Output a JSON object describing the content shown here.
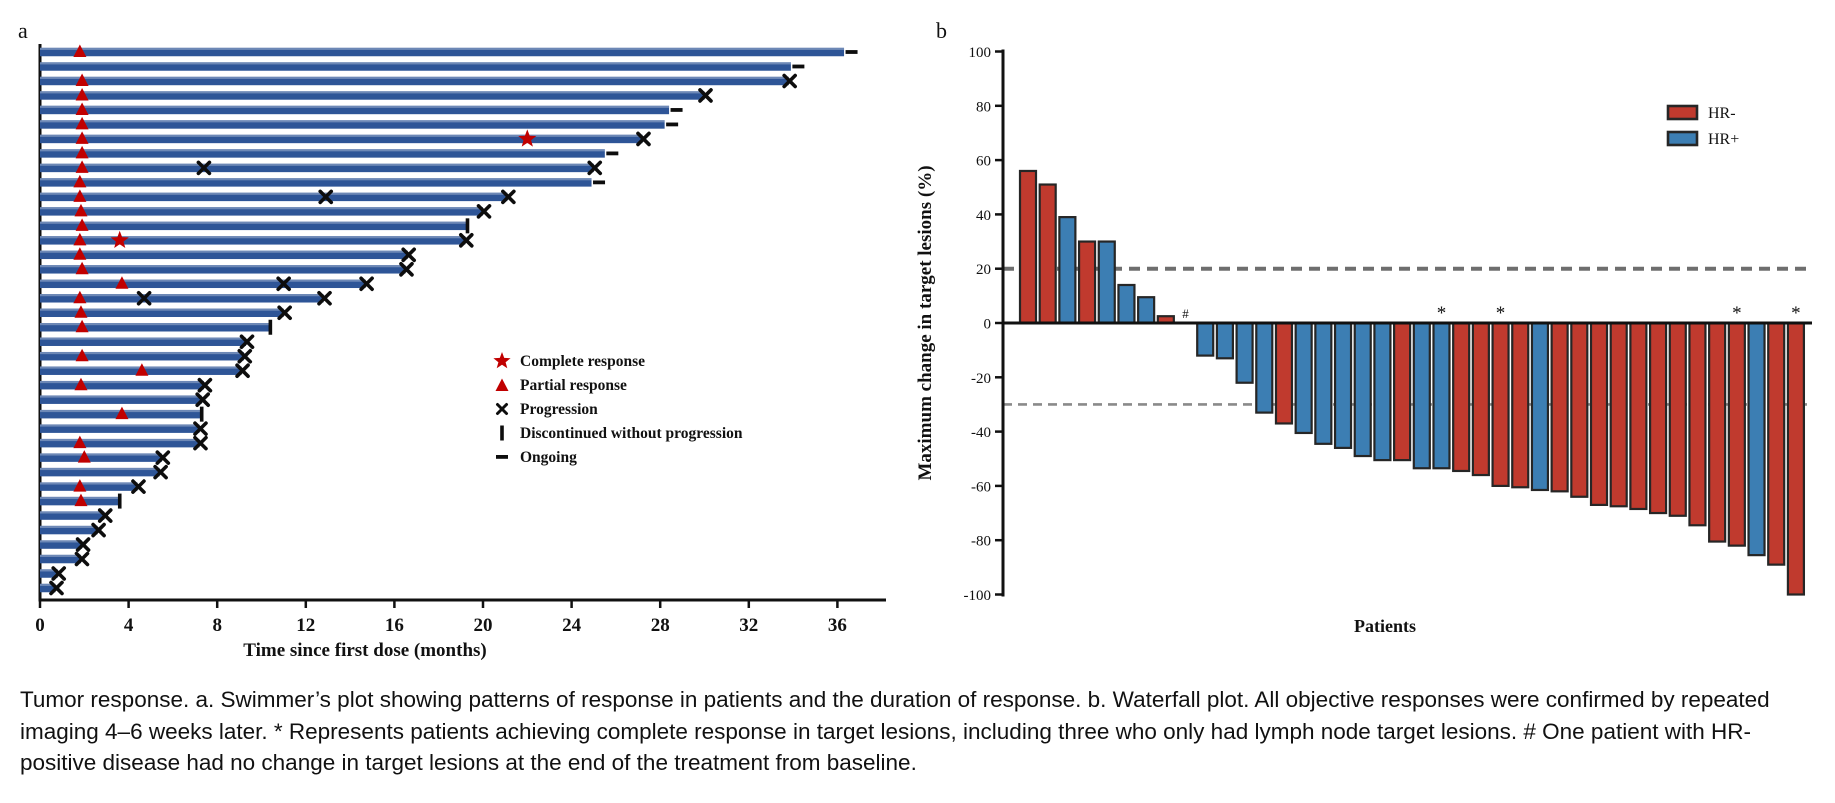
{
  "figure": {
    "panel_a_label": "a",
    "panel_b_label": "b"
  },
  "chart_data": [
    {
      "type": "swimmer",
      "panel": "a",
      "xlabel": "Time since first dose (months)",
      "x_ticks": [
        0,
        4,
        8,
        12,
        16,
        20,
        24,
        28,
        32,
        36
      ],
      "xlim": [
        0,
        38
      ],
      "bar_color": "#2e5597",
      "marker_color": "#c00000",
      "progression_color": "#111111",
      "legend": [
        {
          "marker": "star",
          "label": "Complete response"
        },
        {
          "marker": "triangle",
          "label": "Partial response"
        },
        {
          "marker": "x",
          "label": "Progression"
        },
        {
          "marker": "bar",
          "label": "Discontinued without progression"
        },
        {
          "marker": "dash",
          "label": "Ongoing"
        }
      ],
      "patients": [
        {
          "duration_months": 36.3,
          "end": "ongoing",
          "partial_response_month": 1.8
        },
        {
          "duration_months": 33.9,
          "end": "ongoing"
        },
        {
          "duration_months": 33.8,
          "end": "progression",
          "partial_response_month": 1.9
        },
        {
          "duration_months": 30.0,
          "end": "progression",
          "partial_response_month": 1.9
        },
        {
          "duration_months": 28.4,
          "end": "ongoing",
          "partial_response_month": 1.9
        },
        {
          "duration_months": 28.2,
          "end": "ongoing",
          "partial_response_month": 1.9
        },
        {
          "duration_months": 27.2,
          "end": "progression",
          "partial_response_month": 1.9,
          "complete_response_month": 22.0
        },
        {
          "duration_months": 25.5,
          "end": "ongoing",
          "partial_response_month": 1.9
        },
        {
          "duration_months": 25.0,
          "end": "progression",
          "partial_response_month": 1.9,
          "progression_months": [
            7.4
          ]
        },
        {
          "duration_months": 24.9,
          "end": "ongoing",
          "partial_response_month": 1.8
        },
        {
          "duration_months": 21.1,
          "end": "progression",
          "partial_response_month": 1.8,
          "progression_months": [
            12.9
          ]
        },
        {
          "duration_months": 20.0,
          "end": "progression",
          "partial_response_month": 1.85
        },
        {
          "duration_months": 19.3,
          "end": "discontinued",
          "partial_response_month": 1.9
        },
        {
          "duration_months": 19.2,
          "end": "progression",
          "partial_response_month": 1.8,
          "complete_response_month": 3.6
        },
        {
          "duration_months": 16.6,
          "end": "progression",
          "partial_response_month": 1.8
        },
        {
          "duration_months": 16.5,
          "end": "progression",
          "partial_response_month": 1.9
        },
        {
          "duration_months": 14.7,
          "end": "progression",
          "partial_response_month": 3.7,
          "progression_months": [
            11.0
          ]
        },
        {
          "duration_months": 12.8,
          "end": "progression",
          "partial_response_month": 1.8,
          "progression_months": [
            4.7
          ]
        },
        {
          "duration_months": 11.0,
          "end": "progression",
          "partial_response_month": 1.85
        },
        {
          "duration_months": 10.4,
          "end": "discontinued",
          "partial_response_month": 1.9
        },
        {
          "duration_months": 9.3,
          "end": "progression"
        },
        {
          "duration_months": 9.2,
          "end": "progression",
          "partial_response_month": 1.9
        },
        {
          "duration_months": 9.1,
          "end": "progression",
          "partial_response_month": 4.6
        },
        {
          "duration_months": 7.4,
          "end": "progression",
          "partial_response_month": 1.85
        },
        {
          "duration_months": 7.3,
          "end": "progression"
        },
        {
          "duration_months": 7.3,
          "end": "discontinued",
          "partial_response_month": 3.7
        },
        {
          "duration_months": 7.2,
          "end": "progression"
        },
        {
          "duration_months": 7.2,
          "end": "progression",
          "partial_response_month": 1.8
        },
        {
          "duration_months": 5.5,
          "end": "progression",
          "partial_response_month": 2.0
        },
        {
          "duration_months": 5.4,
          "end": "progression"
        },
        {
          "duration_months": 4.4,
          "end": "progression",
          "partial_response_month": 1.8
        },
        {
          "duration_months": 3.6,
          "end": "discontinued",
          "partial_response_month": 1.85
        },
        {
          "duration_months": 2.9,
          "end": "progression"
        },
        {
          "duration_months": 2.6,
          "end": "progression"
        },
        {
          "duration_months": 1.9,
          "end": "progression"
        },
        {
          "duration_months": 1.85,
          "end": "progression"
        },
        {
          "duration_months": 0.8,
          "end": "progression"
        },
        {
          "duration_months": 0.7,
          "end": "progression"
        }
      ]
    },
    {
      "type": "bar",
      "panel": "b",
      "ylabel": "Maximum change in target lesions (%)",
      "xlabel": "Patients",
      "y_ticks": [
        100,
        80,
        60,
        40,
        20,
        0,
        -20,
        -40,
        -60,
        -80,
        -100
      ],
      "ylim": [
        -100,
        100
      ],
      "reference_lines": [
        20,
        -30
      ],
      "hr_negative_color": "#c03a2e",
      "hr_positive_color": "#3c7eb3",
      "legend": [
        {
          "label": "HR-",
          "color": "#c03a2e"
        },
        {
          "label": "HR+",
          "color": "#3c7eb3"
        }
      ],
      "complete_response_symbol": "*",
      "no_change_symbol": "#",
      "patients": [
        {
          "value": 56,
          "hr": "HR-"
        },
        {
          "value": 51,
          "hr": "HR-"
        },
        {
          "value": 39,
          "hr": "HR+"
        },
        {
          "value": 30,
          "hr": "HR-"
        },
        {
          "value": 30,
          "hr": "HR+"
        },
        {
          "value": 14,
          "hr": "HR+"
        },
        {
          "value": 9.5,
          "hr": "HR+"
        },
        {
          "value": 2.5,
          "hr": "HR-"
        },
        {
          "value": 0,
          "hr": "HR+",
          "mark": "#"
        },
        {
          "value": -12,
          "hr": "HR+"
        },
        {
          "value": -13,
          "hr": "HR+"
        },
        {
          "value": -22,
          "hr": "HR+"
        },
        {
          "value": -33,
          "hr": "HR+"
        },
        {
          "value": -37,
          "hr": "HR-"
        },
        {
          "value": -40.5,
          "hr": "HR+"
        },
        {
          "value": -44.5,
          "hr": "HR+"
        },
        {
          "value": -46,
          "hr": "HR+"
        },
        {
          "value": -49,
          "hr": "HR+"
        },
        {
          "value": -50.5,
          "hr": "HR+"
        },
        {
          "value": -50.5,
          "hr": "HR-"
        },
        {
          "value": -53.5,
          "hr": "HR+"
        },
        {
          "value": -53.5,
          "hr": "HR+",
          "mark": "*"
        },
        {
          "value": -54.5,
          "hr": "HR-"
        },
        {
          "value": -56,
          "hr": "HR-"
        },
        {
          "value": -60,
          "hr": "HR-",
          "mark": "*"
        },
        {
          "value": -60.5,
          "hr": "HR-"
        },
        {
          "value": -61.5,
          "hr": "HR+"
        },
        {
          "value": -62,
          "hr": "HR-"
        },
        {
          "value": -64,
          "hr": "HR-"
        },
        {
          "value": -67,
          "hr": "HR-"
        },
        {
          "value": -67.5,
          "hr": "HR-"
        },
        {
          "value": -68.5,
          "hr": "HR-"
        },
        {
          "value": -70,
          "hr": "HR-"
        },
        {
          "value": -71,
          "hr": "HR-"
        },
        {
          "value": -74.5,
          "hr": "HR-"
        },
        {
          "value": -80.5,
          "hr": "HR-"
        },
        {
          "value": -82,
          "hr": "HR-",
          "mark": "*"
        },
        {
          "value": -85.5,
          "hr": "HR+"
        },
        {
          "value": -89,
          "hr": "HR-"
        },
        {
          "value": -100,
          "hr": "HR-",
          "mark": "*"
        }
      ]
    }
  ],
  "caption": "Tumor response. a. Swimmer’s plot showing patterns of response in patients and the duration of response. b. Waterfall plot. All objective responses were confirmed by repeated imaging 4–6 weeks later. * Represents patients achieving complete response in target lesions, including three who only had lymph node target lesions. # One patient with HR-positive disease had no change in target lesions at the end of the treatment from baseline."
}
